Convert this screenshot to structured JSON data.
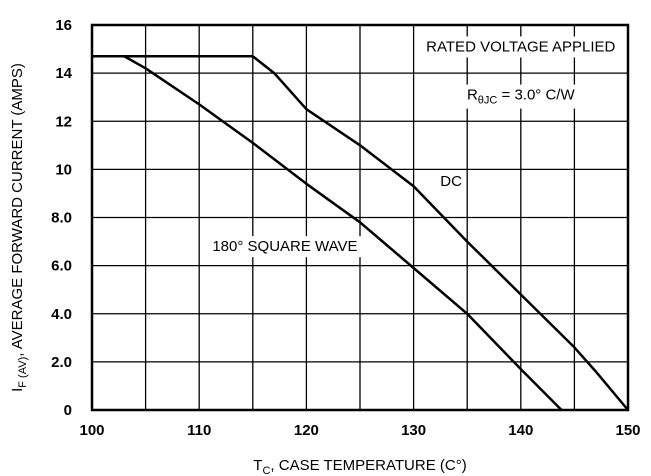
{
  "chart_data": {
    "type": "line",
    "xlabel_main": "T",
    "xlabel_sub": "C",
    "xlabel_rest": ", CASE TEMPERATURE (C°)",
    "ylabel_main": "I",
    "ylabel_sub": "F (AV)",
    "ylabel_rest": ", AVERAGE FORWARD CURRENT (AMPS)",
    "xlim": [
      100,
      150
    ],
    "ylim": [
      0,
      16
    ],
    "x_ticks": [
      100,
      105,
      110,
      115,
      120,
      125,
      130,
      135,
      140,
      145,
      150
    ],
    "x_tick_labels": [
      "100",
      "",
      "110",
      "",
      "120",
      "",
      "130",
      "",
      "140",
      "",
      "150"
    ],
    "y_ticks": [
      0,
      2,
      4,
      6,
      8,
      10,
      12,
      14,
      16
    ],
    "y_tick_labels": [
      "0",
      "2.0",
      "4.0",
      "6.0",
      "8.0",
      "10",
      "12",
      "14",
      "16"
    ],
    "grid": true,
    "annotations": {
      "condition": "RATED VOLTAGE APPLIED",
      "resistance_main": "R",
      "resistance_sub": "θJC",
      "resistance_rest": " = 3.0° C/W"
    },
    "series": [
      {
        "name": "DC",
        "x": [
          100,
          115,
          117,
          120,
          125,
          130,
          135,
          140,
          145,
          147,
          150
        ],
        "y": [
          14.7,
          14.7,
          14.0,
          12.5,
          11.0,
          9.3,
          7.0,
          4.8,
          2.6,
          1.6,
          0
        ]
      },
      {
        "name": "180° SQUARE WAVE",
        "x": [
          100,
          103,
          105,
          110,
          115,
          120,
          125,
          130,
          135,
          140,
          143.8
        ],
        "y": [
          14.7,
          14.7,
          14.2,
          12.7,
          11.1,
          9.4,
          7.8,
          5.9,
          4.0,
          1.7,
          0
        ]
      }
    ]
  }
}
